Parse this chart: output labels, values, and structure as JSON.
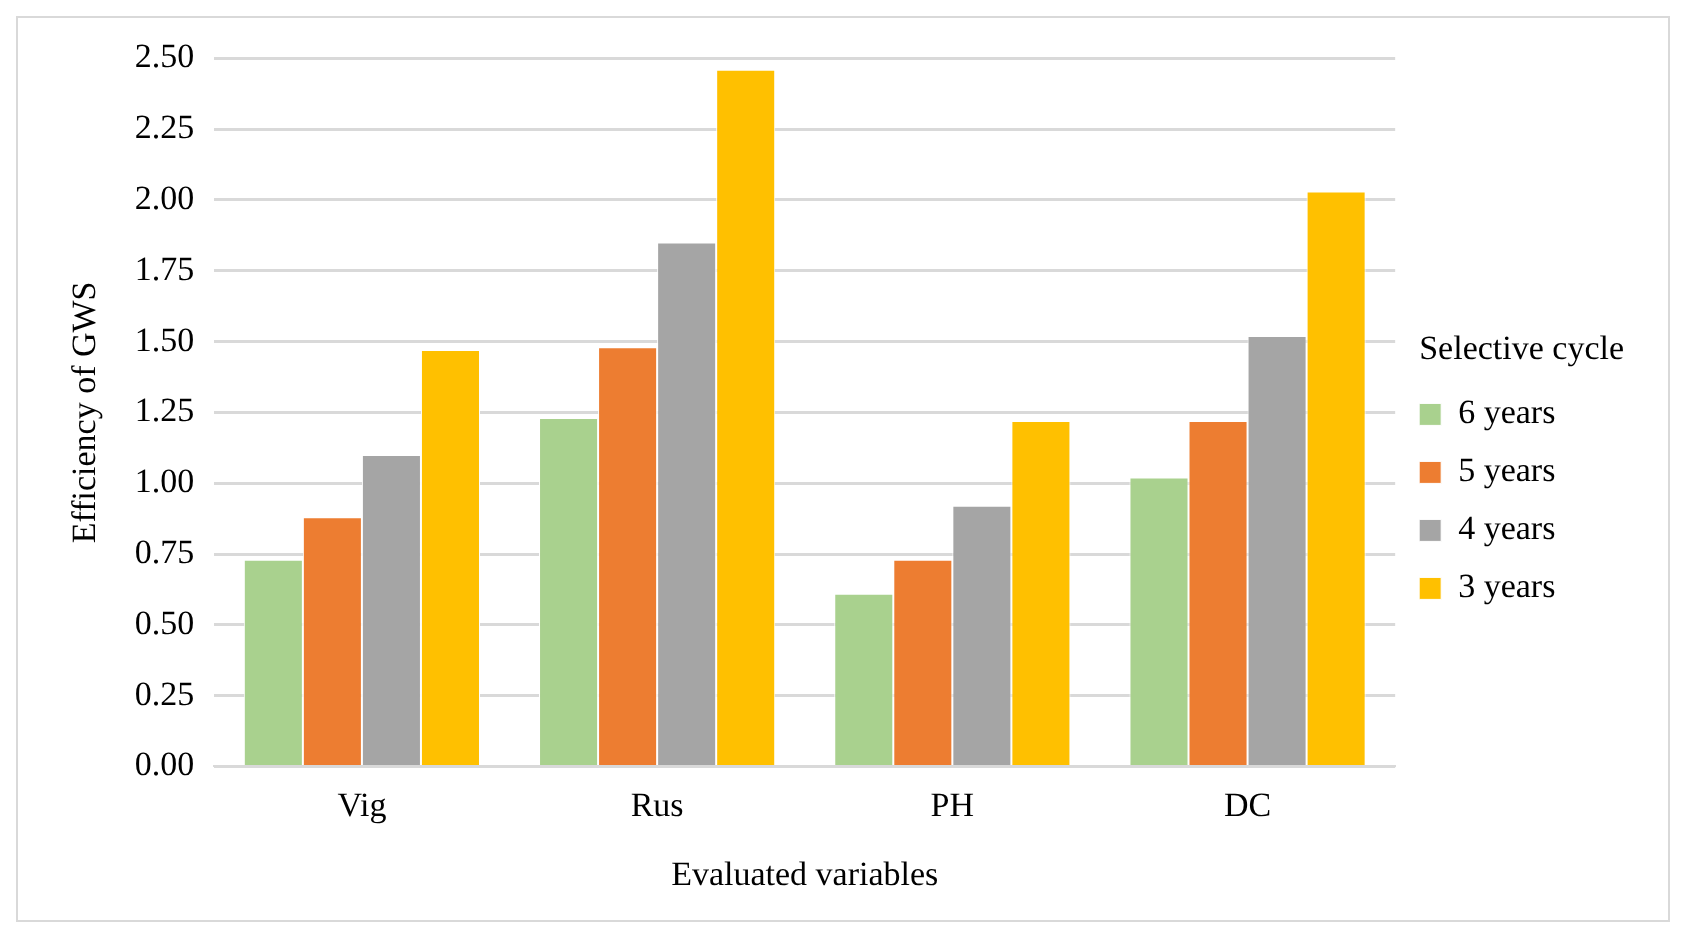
{
  "chart_data": {
    "type": "bar",
    "xlabel": "Evaluated variables",
    "ylabel": "Efficiency of GWS",
    "legend_title": "Selective cycle",
    "categories": [
      "Vig",
      "Rus",
      "PH",
      "DC"
    ],
    "series": [
      {
        "name": "6 years",
        "color": "#a9d18e",
        "values": [
          0.73,
          1.23,
          0.61,
          1.02
        ]
      },
      {
        "name": "5 years",
        "color": "#ed7d31",
        "values": [
          0.88,
          1.48,
          0.73,
          1.22
        ]
      },
      {
        "name": "4 years",
        "color": "#a5a5a5",
        "values": [
          1.1,
          1.85,
          0.92,
          1.52
        ]
      },
      {
        "name": "3 years",
        "color": "#ffc000",
        "values": [
          1.47,
          2.46,
          1.22,
          2.03
        ]
      }
    ],
    "ylim": [
      0,
      2.5
    ],
    "yticks": [
      {
        "value": 0,
        "label": "0.00"
      },
      {
        "value": 0.25,
        "label": "0.25"
      },
      {
        "value": 0.5,
        "label": "0.50"
      },
      {
        "value": 0.75,
        "label": "0.75"
      },
      {
        "value": 1,
        "label": "1.00"
      },
      {
        "value": 1.25,
        "label": "1.25"
      },
      {
        "value": 1.5,
        "label": "1.50"
      },
      {
        "value": 1.75,
        "label": "1.75"
      },
      {
        "value": 2,
        "label": "2.00"
      },
      {
        "value": 2.25,
        "label": "2.25"
      },
      {
        "value": 2.5,
        "label": "2.50"
      }
    ],
    "grid": "y",
    "legend": "right"
  }
}
